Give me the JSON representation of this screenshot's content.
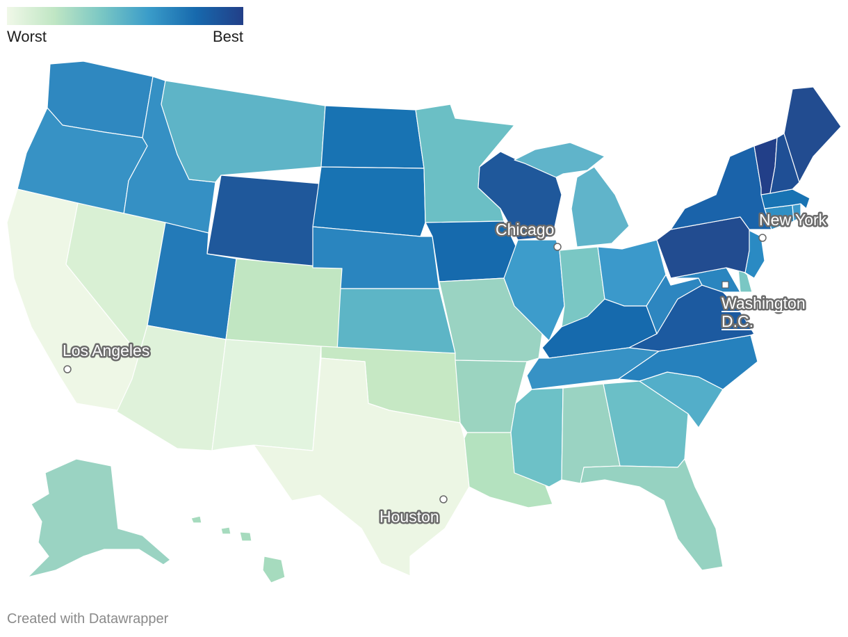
{
  "legend": {
    "low_label": "Worst",
    "high_label": "Best",
    "colors": [
      "#f0f8e8",
      "#c0e6c4",
      "#7ac7c4",
      "#3a9cc9",
      "#1769ad",
      "#223f88"
    ]
  },
  "states": {
    "WA": "#2f88c0",
    "OR": "#3792c5",
    "CA": "#eef7e6",
    "ID": "#3590c4",
    "NV": "#d9f0d4",
    "MT": "#5eb4c7",
    "WY": "#1f589b",
    "UT": "#237ab8",
    "AZ": "#dff2da",
    "CO": "#c1e6c2",
    "NM": "#e2f4df",
    "ND": "#1873b3",
    "SD": "#1873b3",
    "NE": "#2a85bf",
    "KS": "#5db5c6",
    "OK": "#c6e8c4",
    "TX": "#ecf6e4",
    "MN": "#6bbfc5",
    "IA": "#166aad",
    "MO": "#9ad3c2",
    "AR": "#9bd4c0",
    "LA": "#b4e2bf",
    "WI": "#1f589b",
    "IL": "#3d9ccb",
    "MI": "#60b4ca",
    "IN": "#7ac7c4",
    "OH": "#3b99cb",
    "KY": "#166aad",
    "TN": "#3792c5",
    "MS": "#6dc1c7",
    "AL": "#9ad3c2",
    "GA": "#6bbfc7",
    "FL": "#96d2c1",
    "SC": "#53aec9",
    "NC": "#2681bd",
    "VA": "#1c5aa0",
    "WV": "#2d86c0",
    "MD": "#2a85bf",
    "DE": "#7ac7c4",
    "NJ": "#2a8ac3",
    "PA": "#224c90",
    "NY": "#1a63aa",
    "CT": "#2f8fc4",
    "RI": "#3b99cb",
    "MA": "#1873b3",
    "VT": "#223f88",
    "NH": "#1f4f95",
    "ME": "#224c90",
    "AK": "#9ad3c2",
    "HI": "#a6dbbe"
  },
  "cities": {
    "chicago": "Chicago",
    "new_york": "New York",
    "washington": "Washington D.C.",
    "washington_line1": "Washington",
    "washington_line2": "D.C.",
    "los_angeles": "Los Angeles",
    "houston": "Houston"
  },
  "credit": "Created with Datawrapper"
}
